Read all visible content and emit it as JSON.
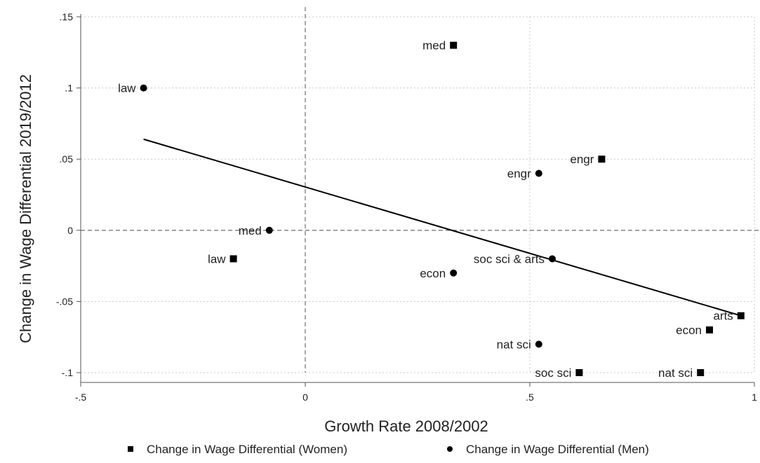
{
  "chart_data": {
    "type": "scatter",
    "xlabel": "Growth Rate 2008/2002",
    "ylabel": "Change in Wage Differential 2019/2012",
    "xlim": [
      -0.5,
      1.0
    ],
    "ylim": [
      -0.1,
      0.15
    ],
    "x_ticks": [
      -0.5,
      0,
      0.5,
      1
    ],
    "x_tick_labels": [
      "-.5",
      "0",
      ".5",
      "1"
    ],
    "y_ticks": [
      -0.1,
      -0.05,
      0,
      0.05,
      0.1,
      0.15
    ],
    "y_tick_labels": [
      "-.1",
      "-.05",
      "0",
      ".05",
      ".1",
      ".15"
    ],
    "grid": "dotted",
    "reference_lines": {
      "x": 0,
      "y": 0,
      "style": "dashed"
    },
    "series": [
      {
        "name": "Change in Wage Differential (Women)",
        "marker": "square",
        "points": [
          {
            "label": "med",
            "x": 0.33,
            "y": 0.13
          },
          {
            "label": "engr",
            "x": 0.66,
            "y": 0.05
          },
          {
            "label": "law",
            "x": -0.16,
            "y": -0.02
          },
          {
            "label": "arts",
            "x": 0.97,
            "y": -0.06
          },
          {
            "label": "econ",
            "x": 0.9,
            "y": -0.07
          },
          {
            "label": "soc sci",
            "x": 0.61,
            "y": -0.1
          },
          {
            "label": "nat sci",
            "x": 0.88,
            "y": -0.1
          }
        ]
      },
      {
        "name": "Change in Wage Differential (Men)",
        "marker": "circle",
        "points": [
          {
            "label": "law",
            "x": -0.36,
            "y": 0.1
          },
          {
            "label": "engr",
            "x": 0.52,
            "y": 0.04
          },
          {
            "label": "med",
            "x": -0.08,
            "y": 0.0
          },
          {
            "label": "soc sci & arts",
            "x": 0.55,
            "y": -0.02
          },
          {
            "label": "econ",
            "x": 0.33,
            "y": -0.03
          },
          {
            "label": "nat sci",
            "x": 0.52,
            "y": -0.08
          }
        ]
      }
    ],
    "fit_line": {
      "x": [
        -0.36,
        0.97
      ],
      "y": [
        0.064,
        -0.06
      ]
    },
    "legend_position": "bottom",
    "colors": {
      "marker": "#000000",
      "fit_line": "#000000",
      "grid": "#c8c8c8",
      "reference_line": "#7a7a7a",
      "axis": "#555555"
    }
  }
}
